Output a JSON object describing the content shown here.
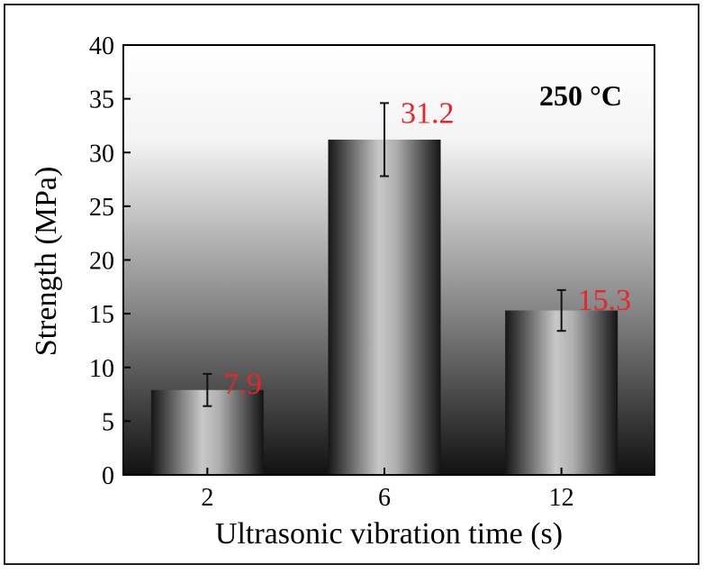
{
  "chart_data": {
    "type": "bar",
    "categories": [
      "2",
      "6",
      "12"
    ],
    "values": [
      7.9,
      31.2,
      15.3
    ],
    "errors": [
      1.5,
      3.4,
      1.9
    ],
    "data_labels": [
      "7.9",
      "31.2",
      "15.3"
    ],
    "annotation": "250 °C",
    "xlabel": "Ultrasonic vibration time (s)",
    "ylabel": "Strength (MPa)",
    "ylim": [
      0,
      40
    ],
    "yticks": [
      "0",
      "5",
      "10",
      "15",
      "20",
      "25",
      "30",
      "35",
      "40"
    ],
    "grid": false,
    "colors": {
      "label": "#e8262a",
      "axis": "#000000"
    }
  }
}
